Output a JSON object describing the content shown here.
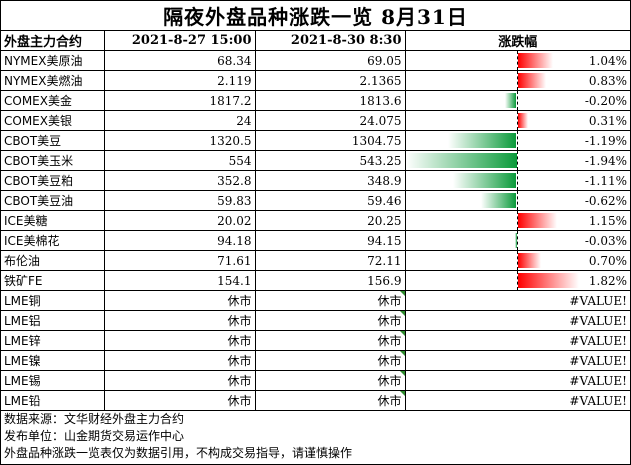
{
  "title": "隔夜外盘品种涨跌一览 8月31日",
  "header": {
    "col_name": "外盘主力合约",
    "col_d1": "2021-8-27 15:00",
    "col_d2": "2021-8-30 8:30",
    "col_chg": "涨跌幅"
  },
  "colors": {
    "up": "#ff0000",
    "down": "#0a9a3a"
  },
  "rows": [
    {
      "name": "NYMEX美原油",
      "v1": "68.34",
      "v2": "69.05",
      "chg": "1.04%",
      "chg_value": 1.04
    },
    {
      "name": "NYMEX美燃油",
      "v1": "2.119",
      "v2": "2.1365",
      "chg": "0.83%",
      "chg_value": 0.83
    },
    {
      "name": "COMEX美金",
      "v1": "1817.2",
      "v2": "1813.6",
      "chg": "-0.20%",
      "chg_value": -0.2
    },
    {
      "name": "COMEX美银",
      "v1": "24",
      "v2": "24.075",
      "chg": "0.31%",
      "chg_value": 0.31
    },
    {
      "name": "CBOT美豆",
      "v1": "1320.5",
      "v2": "1304.75",
      "chg": "-1.19%",
      "chg_value": -1.19
    },
    {
      "name": "CBOT美玉米",
      "v1": "554",
      "v2": "543.25",
      "chg": "-1.94%",
      "chg_value": -1.94
    },
    {
      "name": "CBOT美豆粕",
      "v1": "352.8",
      "v2": "348.9",
      "chg": "-1.11%",
      "chg_value": -1.11
    },
    {
      "name": "CBOT美豆油",
      "v1": "59.83",
      "v2": "59.46",
      "chg": "-0.62%",
      "chg_value": -0.62
    },
    {
      "name": "ICE美糖",
      "v1": "20.02",
      "v2": "20.25",
      "chg": "1.15%",
      "chg_value": 1.15
    },
    {
      "name": "ICE美棉花",
      "v1": "94.18",
      "v2": "94.15",
      "chg": "-0.03%",
      "chg_value": -0.03
    },
    {
      "name": "布伦油",
      "v1": "71.61",
      "v2": "72.11",
      "chg": "0.70%",
      "chg_value": 0.7
    },
    {
      "name": "铁矿FE",
      "v1": "154.1",
      "v2": "156.9",
      "chg": "1.82%",
      "chg_value": 1.82
    },
    {
      "name": "LME铜",
      "v1": "休市",
      "v2": "休市",
      "chg": "#VALUE!",
      "error_marker": true
    },
    {
      "name": "LME铝",
      "v1": "休市",
      "v2": "休市",
      "chg": "#VALUE!",
      "error_marker": true
    },
    {
      "name": "LME锌",
      "v1": "休市",
      "v2": "休市",
      "chg": "#VALUE!",
      "error_marker": true
    },
    {
      "name": "LME镍",
      "v1": "休市",
      "v2": "休市",
      "chg": "#VALUE!",
      "error_marker": true
    },
    {
      "name": "LME锡",
      "v1": "休市",
      "v2": "休市",
      "chg": "#VALUE!",
      "error_marker": true
    },
    {
      "name": "LME铅",
      "v1": "休市",
      "v2": "休市",
      "chg": "#VALUE!",
      "error_marker": true
    }
  ],
  "notes": [
    "数据来源：文华财经外盘主力合约",
    "发布单位：山金期货交易运作中心",
    "外盘品种涨跌一览表仅为数据引用，不构成交易指导，请谨慎操作"
  ]
}
